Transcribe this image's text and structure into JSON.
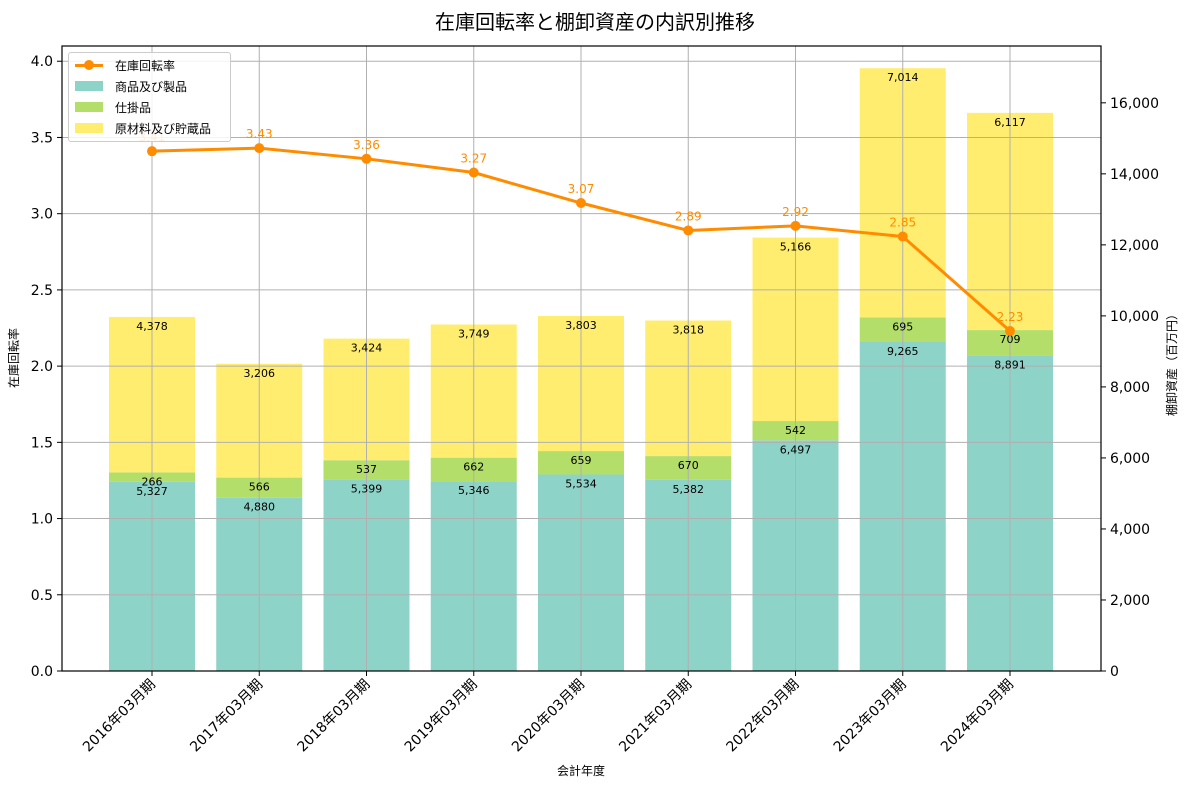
{
  "chart_data": {
    "type": "bar",
    "subtype": "stacked bar + line (dual axis)",
    "title": "在庫回転率と棚卸資産の内訳別推移",
    "xlabel": "会計年度",
    "ylabel_left": "在庫回転率",
    "ylabel_right": "棚卸資産（百万円）",
    "ylim_left": [
      0,
      4.1
    ],
    "ylim_right": [
      0,
      17600
    ],
    "yticks_left": [
      "0.0",
      "0.5",
      "1.0",
      "1.5",
      "2.0",
      "2.5",
      "3.0",
      "3.5",
      "4.0"
    ],
    "yticks_right": [
      "0",
      "2,000",
      "4,000",
      "6,000",
      "8,000",
      "10,000",
      "12,000",
      "14,000",
      "16,000"
    ],
    "grid": true,
    "legend_position": "upper left",
    "categories": [
      "2016年03月期",
      "2017年03月期",
      "2018年03月期",
      "2019年03月期",
      "2020年03月期",
      "2021年03月期",
      "2022年03月期",
      "2023年03月期",
      "2024年03月期"
    ],
    "series": [
      {
        "name": "商品及び製品",
        "type": "bar",
        "axis": "right",
        "color": "#8dd3c7",
        "values": [
          5327,
          4880,
          5399,
          5346,
          5534,
          5382,
          6497,
          9265,
          8891
        ],
        "labels": [
          "5,327",
          "4,880",
          "5,399",
          "5,346",
          "5,534",
          "5,382",
          "6,497",
          "9,265",
          "8,891"
        ]
      },
      {
        "name": "仕掛品",
        "type": "bar",
        "axis": "right",
        "color": "#b3de69",
        "values": [
          266,
          566,
          537,
          662,
          659,
          670,
          542,
          695,
          709
        ],
        "labels": [
          "266",
          "566",
          "537",
          "662",
          "659",
          "670",
          "542",
          "695",
          "709"
        ]
      },
      {
        "name": "原材料及び貯蔵品",
        "type": "bar",
        "axis": "right",
        "color": "#ffed6f",
        "values": [
          4378,
          3206,
          3424,
          3749,
          3803,
          3818,
          5166,
          7014,
          6117
        ],
        "labels": [
          "4,378",
          "3,206",
          "3,424",
          "3,749",
          "3,803",
          "3,818",
          "5,166",
          "7,014",
          "6,117"
        ]
      },
      {
        "name": "在庫回転率",
        "type": "line",
        "axis": "left",
        "color": "#ff8c00",
        "values": [
          3.41,
          3.43,
          3.36,
          3.27,
          3.07,
          2.89,
          2.92,
          2.85,
          2.23
        ],
        "labels": [
          "3.41",
          "3.43",
          "3.36",
          "3.27",
          "3.07",
          "2.89",
          "2.92",
          "2.85",
          "2.23"
        ]
      }
    ]
  },
  "legend": {
    "items": [
      {
        "label": "在庫回転率",
        "kind": "line",
        "color": "#ff8c00"
      },
      {
        "label": "商品及び製品",
        "kind": "patch",
        "color": "#8dd3c7"
      },
      {
        "label": "仕掛品",
        "kind": "patch",
        "color": "#b3de69"
      },
      {
        "label": "原材料及び貯蔵品",
        "kind": "patch",
        "color": "#ffed6f"
      }
    ]
  }
}
